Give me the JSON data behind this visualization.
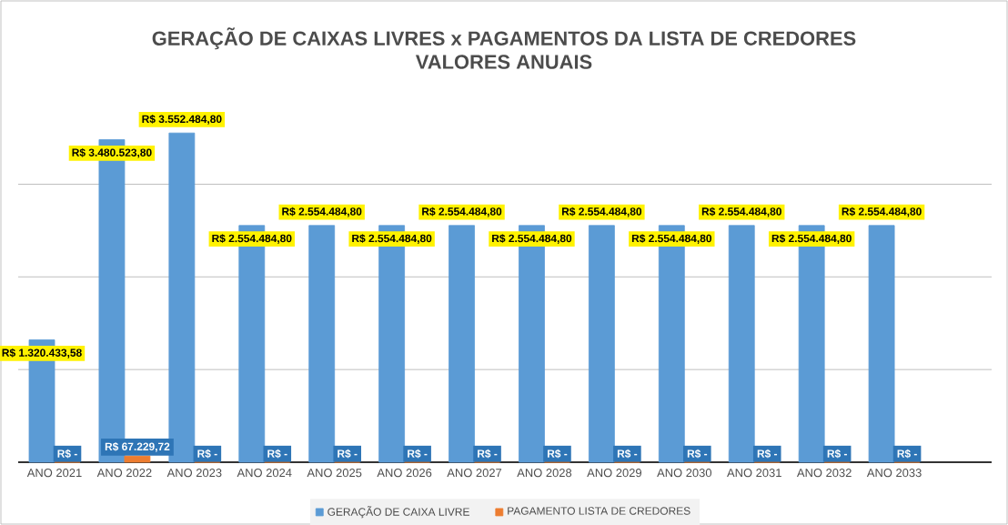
{
  "chart_data": {
    "type": "bar",
    "title": "GERAÇÃO DE CAIXAS LIVRES x PAGAMENTOS DA LISTA DE CREDORES",
    "subtitle": "VALORES ANUAIS",
    "categories": [
      "ANO 2021",
      "ANO 2022",
      "ANO 2023",
      "ANO 2024",
      "ANO 2025",
      "ANO 2026",
      "ANO 2027",
      "ANO 2028",
      "ANO 2029",
      "ANO 2030",
      "ANO 2031",
      "ANO 2032",
      "ANO 2033"
    ],
    "series": [
      {
        "name": "GERAÇÃO DE CAIXA LIVRE",
        "color": "#5b9bd5",
        "values": [
          1320433.58,
          3480523.8,
          3552484.8,
          2554484.8,
          2554484.8,
          2554484.8,
          2554484.8,
          2554484.8,
          2554484.8,
          2554484.8,
          2554484.8,
          2554484.8,
          2554484.8
        ],
        "value_labels": [
          "R$ 1.320.433,58",
          "R$ 3.480.523,80",
          "R$ 3.552.484,80",
          "R$ 2.554.484,80",
          "R$ 2.554.484,80",
          "R$ 2.554.484,80",
          "R$ 2.554.484,80",
          "R$ 2.554.484,80",
          "R$ 2.554.484,80",
          "R$ 2.554.484,80",
          "R$ 2.554.484,80",
          "R$ 2.554.484,80",
          "R$ 2.554.484,80"
        ]
      },
      {
        "name": "PAGAMENTO LISTA DE CREDORES",
        "color": "#ed7d31",
        "values": [
          0,
          67229.72,
          0,
          0,
          0,
          0,
          0,
          0,
          0,
          0,
          0,
          0,
          0
        ],
        "value_labels": [
          "R$ -",
          "R$ 67.229,72",
          "R$ -",
          "R$ -",
          "R$ -",
          "R$ -",
          "R$ -",
          "R$ -",
          "R$ -",
          "R$ -",
          "R$ -",
          "R$ -",
          "R$ -"
        ]
      }
    ],
    "grid": "y",
    "tick_labels": "x",
    "legend": "bottom"
  }
}
